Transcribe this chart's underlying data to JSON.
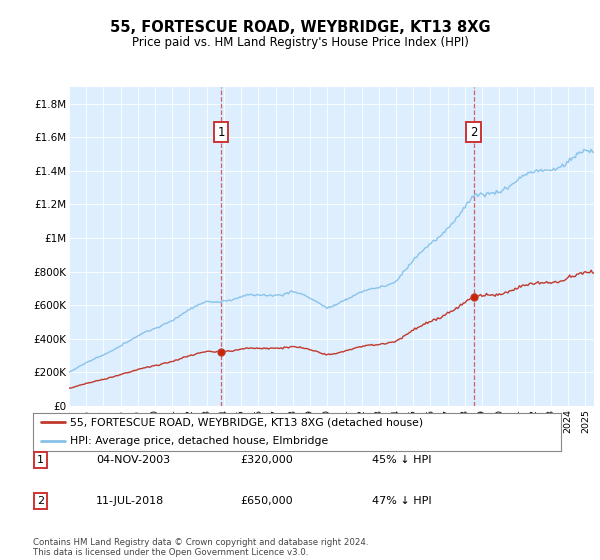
{
  "title": "55, FORTESCUE ROAD, WEYBRIDGE, KT13 8XG",
  "subtitle": "Price paid vs. HM Land Registry's House Price Index (HPI)",
  "ylim": [
    0,
    1900000
  ],
  "yticks": [
    0,
    200000,
    400000,
    600000,
    800000,
    1000000,
    1200000,
    1400000,
    1600000,
    1800000
  ],
  "ytick_labels": [
    "£0",
    "£200K",
    "£400K",
    "£600K",
    "£800K",
    "£1M",
    "£1.2M",
    "£1.4M",
    "£1.6M",
    "£1.8M"
  ],
  "hpi_color": "#85c1e9",
  "price_color": "#c0392b",
  "plot_bg": "#ddeeff",
  "annotation1_year": 2003.833,
  "annotation1_price": 320000,
  "annotation2_year": 2018.5,
  "annotation2_price": 650000,
  "legend_line1": "55, FORTESCUE ROAD, WEYBRIDGE, KT13 8XG (detached house)",
  "legend_line2": "HPI: Average price, detached house, Elmbridge",
  "footnote": "Contains HM Land Registry data © Crown copyright and database right 2024.\nThis data is licensed under the Open Government Licence v3.0.",
  "annotation_table": [
    [
      "1",
      "04-NOV-2003",
      "£320,000",
      "45% ↓ HPI"
    ],
    [
      "2",
      "11-JUL-2018",
      "£650,000",
      "47% ↓ HPI"
    ]
  ]
}
